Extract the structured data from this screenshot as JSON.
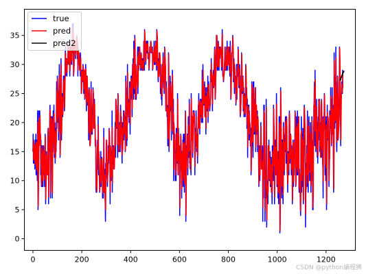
{
  "chart_data": {
    "type": "line",
    "xlim": [
      -35,
      1320
    ],
    "ylim": [
      -2,
      39.5
    ],
    "x_ticks": [
      0,
      200,
      400,
      600,
      800,
      1000,
      1200
    ],
    "y_ticks": [
      0,
      5,
      10,
      15,
      20,
      25,
      30,
      35
    ],
    "grid": false,
    "legend_position": "top-left",
    "n_points": 1270,
    "series": [
      {
        "name": "true",
        "color": "#0000ff",
        "x_step": 1,
        "envelope_x": [
          0,
          20,
          40,
          60,
          80,
          100,
          120,
          140,
          160,
          180,
          200,
          220,
          240,
          260,
          280,
          300,
          320,
          340,
          360,
          380,
          400,
          420,
          440,
          460,
          480,
          500,
          520,
          540,
          560,
          580,
          600,
          620,
          640,
          660,
          680,
          700,
          720,
          740,
          760,
          780,
          800,
          820,
          840,
          860,
          880,
          900,
          920,
          940,
          960,
          980,
          1000,
          1020,
          1040,
          1060,
          1080,
          1100,
          1120,
          1140,
          1160,
          1180,
          1200,
          1220,
          1240,
          1260,
          1270
        ],
        "envelope_min": [
          9,
          1,
          5,
          6,
          7,
          10,
          18,
          26,
          28,
          29,
          24,
          19,
          14,
          8,
          5,
          3,
          7,
          9,
          10,
          12,
          19,
          24,
          26,
          30,
          29,
          28,
          25,
          20,
          14,
          9,
          4,
          1,
          8,
          10,
          14,
          17,
          20,
          23,
          27,
          26,
          25,
          22,
          19,
          17,
          14,
          10,
          5,
          3,
          2,
          0,
          0,
          2,
          4,
          6,
          3,
          1,
          2,
          4,
          6,
          8,
          5,
          6,
          9,
          12,
          22
        ],
        "envelope_max": [
          20,
          22,
          23,
          25,
          27,
          31,
          34,
          36,
          37,
          37,
          33,
          31,
          27,
          22,
          18,
          20,
          22,
          24,
          26,
          28,
          33,
          35,
          36,
          36,
          36,
          36,
          35,
          33,
          31,
          27,
          24,
          22,
          24,
          26,
          28,
          30,
          32,
          34,
          36,
          36,
          36,
          35,
          33,
          31,
          29,
          27,
          25,
          23,
          24,
          22,
          25,
          26,
          28,
          30,
          29,
          27,
          26,
          27,
          29,
          30,
          29,
          31,
          33,
          33,
          28
        ]
      },
      {
        "name": "pred",
        "color": "#ff0000",
        "x_step": 1,
        "note_lag": 1
      },
      {
        "name": "pred2",
        "color": "#000000",
        "x": [
          1258,
          1262,
          1266,
          1270,
          1274
        ],
        "y": [
          27.2,
          27.8,
          28.2,
          28.6,
          28.9
        ]
      }
    ]
  },
  "legend": {
    "items": [
      {
        "label": "true",
        "color": "#0000ff"
      },
      {
        "label": "pred",
        "color": "#ff0000"
      },
      {
        "label": "pred2",
        "color": "#000000"
      }
    ]
  },
  "watermark": "CSDN @python编程狮"
}
